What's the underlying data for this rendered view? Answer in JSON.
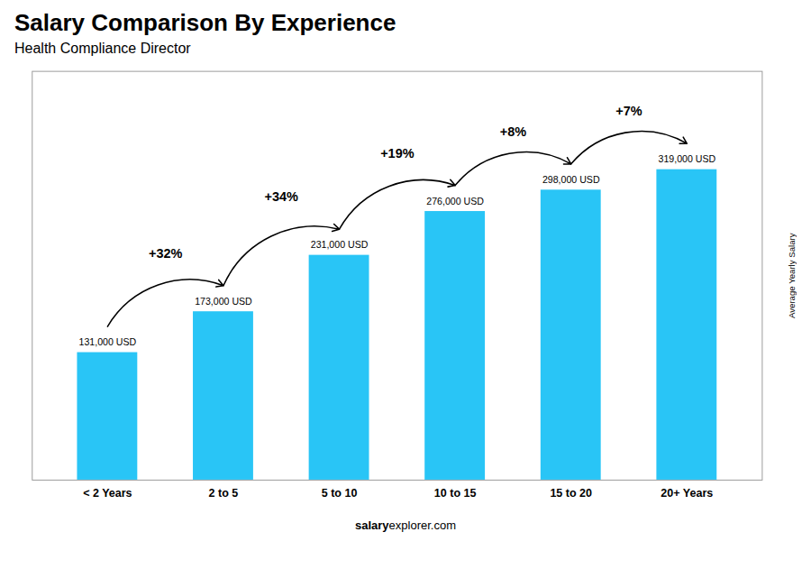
{
  "chart_data": {
    "type": "bar",
    "title": "Salary Comparison By Experience",
    "subtitle": "Health Compliance Director",
    "categories": [
      "< 2 Years",
      "2 to 5",
      "5 to 10",
      "10 to 15",
      "15 to 20",
      "20+ Years"
    ],
    "values": [
      131000,
      173000,
      231000,
      276000,
      298000,
      319000
    ],
    "value_labels": [
      "131,000 USD",
      "173,000 USD",
      "231,000 USD",
      "276,000 USD",
      "298,000 USD",
      "319,000 USD"
    ],
    "data_labels": true,
    "color": "#29c5f6",
    "ylabel": "Average Yearly Salary",
    "ylim": [
      0,
      420000
    ],
    "yticks": [],
    "tick_labels": "x",
    "grid": false,
    "annotations": [
      {
        "text": "+32%",
        "from": "< 2 Years",
        "to": "2 to 5"
      },
      {
        "text": "+34%",
        "from": "2 to 5",
        "to": "5 to 10"
      },
      {
        "text": "+19%",
        "from": "5 to 10",
        "to": "10 to 15"
      },
      {
        "text": "+8%",
        "from": "10 to 15",
        "to": "15 to 20"
      },
      {
        "text": "+7%",
        "from": "15 to 20",
        "to": "20+ Years"
      }
    ],
    "caption": [
      "salary",
      "explorer.com"
    ]
  }
}
